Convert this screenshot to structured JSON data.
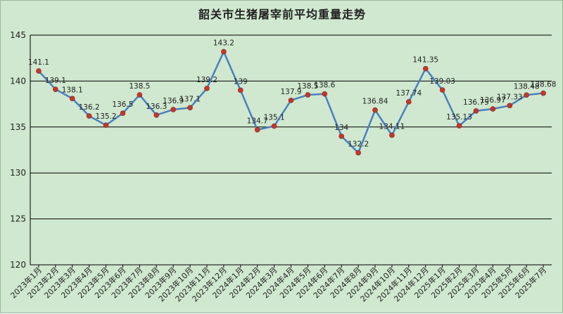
{
  "chart_data": {
    "type": "line",
    "title": "韶关市生猪屠宰前平均重量走势",
    "xlabel": "",
    "ylabel": "",
    "ylim": [
      120,
      145
    ],
    "yticks": [
      120,
      125,
      130,
      135,
      140,
      145
    ],
    "grid": true,
    "legend": "none",
    "colors": {
      "background": "#cfe8cf",
      "line": "#4a7fc1",
      "marker": "#c0392b",
      "grid": "#000000"
    },
    "categories": [
      "2023年1月",
      "2023年2月",
      "2023年3月",
      "2023年4月",
      "2023年5月",
      "2023年6月",
      "2023年7月",
      "2023年8月",
      "2023年9月",
      "2023年10月",
      "2023年11月",
      "2023年12月",
      "2024年1月",
      "2024年2月",
      "2024年3月",
      "2024年4月",
      "2024年5月",
      "2024年6月",
      "2024年7月",
      "2024年8月",
      "2024年9月",
      "2024年10月",
      "2024年11月",
      "2024年12月",
      "2025年1月",
      "2025年2月",
      "2025年3月",
      "2025年4月",
      "2025年5月",
      "2025年6月",
      "2025年7月"
    ],
    "series": [
      {
        "values": [
          141.1,
          139.1,
          138.1,
          136.2,
          135.2,
          136.5,
          138.5,
          136.3,
          136.9,
          137.1,
          139.2,
          143.2,
          139,
          134.7,
          135.1,
          137.9,
          138.5,
          138.6,
          134,
          132.2,
          136.84,
          134.11,
          137.74,
          141.35,
          139.03,
          135.13,
          136.75,
          136.97,
          137.33,
          138.48,
          138.68
        ],
        "labels": [
          "141.1",
          "139.1",
          "138.1",
          "136.2",
          "135.2",
          "136.5",
          "138.5",
          "136.3",
          "136.9",
          "137.1",
          "139.2",
          "143.2",
          "139",
          "134.7",
          "135.1",
          "137.9",
          "138.5",
          "138.6",
          "134",
          "132.2",
          "136.84",
          "134.11",
          "137.74",
          "141.35",
          "139.03",
          "135.13",
          "136.75",
          "136.97",
          "137.33",
          "138.48",
          "138.68"
        ]
      }
    ]
  }
}
